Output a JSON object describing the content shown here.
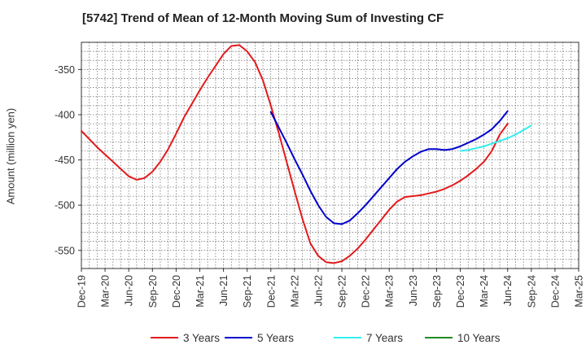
{
  "chart_data": {
    "type": "line",
    "title": "[5742]  Trend of Mean of 12-Month Moving Sum of Investing CF",
    "xlabel": "",
    "ylabel": "Amount (million yen)",
    "ylim": [
      -570,
      -320
    ],
    "yticks": [
      -350,
      -400,
      -450,
      -500,
      -550
    ],
    "ytick_labels": [
      "-350",
      "-400",
      "-450",
      "-500",
      "-550"
    ],
    "x_labels": [
      "Dec-19",
      "Mar-20",
      "Jun-20",
      "Sep-20",
      "Dec-20",
      "Mar-21",
      "Jun-21",
      "Sep-21",
      "Dec-21",
      "Mar-22",
      "Jun-22",
      "Sep-22",
      "Dec-22",
      "Mar-23",
      "Jun-23",
      "Sep-23",
      "Dec-23",
      "Mar-24",
      "Jun-24",
      "Sep-24",
      "Dec-24",
      "Mar-25"
    ],
    "grid": true,
    "legend_position": "bottom",
    "series": [
      {
        "name": "3 Years",
        "color": "#e41a1c",
        "start_month": 0,
        "values": [
          -418,
          -427,
          -436,
          -444,
          -452,
          -460,
          -468,
          -472,
          -470,
          -463,
          -452,
          -438,
          -421,
          -403,
          -388,
          -373,
          -359,
          -346,
          -333,
          -324,
          -323,
          -330,
          -342,
          -362,
          -390,
          -420,
          -452,
          -484,
          -515,
          -542,
          -556,
          -563,
          -564,
          -562,
          -556,
          -548,
          -538,
          -527,
          -516,
          -505,
          -496,
          -491,
          -490,
          -489,
          -487,
          -485,
          -482,
          -478,
          -473,
          -467,
          -460,
          -452,
          -440,
          -422,
          -410
        ]
      },
      {
        "name": "5 Years",
        "color": "#0000cc",
        "start_month": 24,
        "values": [
          -397,
          -414,
          -431,
          -449,
          -466,
          -484,
          -500,
          -513,
          -520,
          -521,
          -517,
          -509,
          -500,
          -490,
          -480,
          -470,
          -460,
          -452,
          -446,
          -441,
          -438,
          -438,
          -439,
          -438,
          -435,
          -431,
          -427,
          -422,
          -416,
          -407,
          -396
        ]
      },
      {
        "name": "7 Years",
        "color": "#33eeee",
        "start_month": 48,
        "values": [
          -440,
          -439,
          -437,
          -435,
          -432,
          -429,
          -426,
          -422,
          -417,
          -412
        ]
      },
      {
        "name": "10 Years",
        "color": "#228b22",
        "start_month": 0,
        "values": []
      }
    ]
  }
}
